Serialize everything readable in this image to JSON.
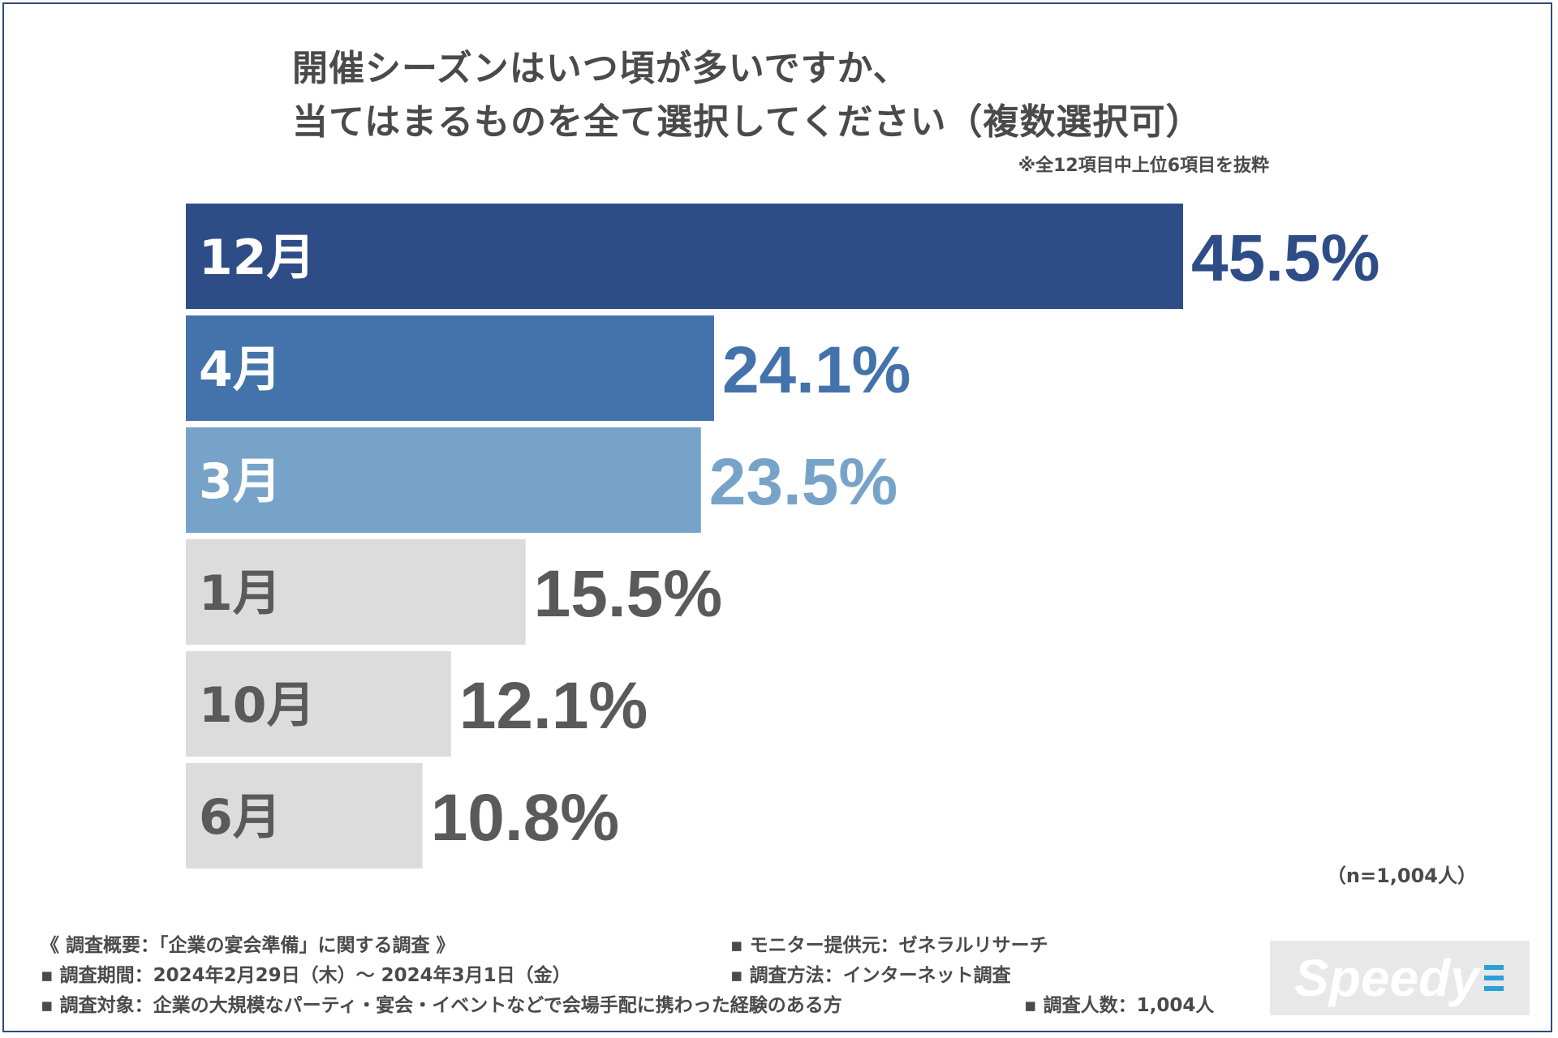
{
  "title_line1": "開催シーズンはいつ頃が多いですか、",
  "title_line2": "当てはまるものを全て選択してください（複数選択可）",
  "note": "※全12項目中上位6項目を抜粋",
  "sample": "（n=1,004人）",
  "footer": {
    "line1": "《 調査概要：「企業の宴会準備」に関する調査 》",
    "line2": "▪ 調査期間：2024年2月29日（木）～ 2024年3月1日（金）",
    "line3": "▪ 調査対象：企業の大規模なパーティ・宴会・イベントなどで会場手配に携わった経験のある方",
    "monitor": "▪ モニター提供元：ゼネラルリサーチ",
    "method": "▪ 調査方法：インターネット調査",
    "count": "▪ 調査人数：1,004人"
  },
  "logo": "Speedy",
  "colors": {
    "bar_dark": "#2e4d87",
    "bar_mid": "#4472ab",
    "bar_light": "#78a3c8",
    "bar_gray": "#dcdcdc",
    "gray_text": "#5a5a5a"
  },
  "chart_data": {
    "type": "bar",
    "orientation": "horizontal",
    "categories": [
      "12月",
      "4月",
      "3月",
      "1月",
      "10月",
      "6月"
    ],
    "values": [
      45.5,
      24.1,
      23.5,
      15.5,
      12.1,
      10.8
    ],
    "value_labels": [
      "45.5%",
      "24.1%",
      "23.5%",
      "15.5%",
      "12.1%",
      "10.8%"
    ],
    "xlim": [
      0,
      45.5
    ],
    "title": "開催シーズンはいつ頃が多いですか、当てはまるものを全て選択してください（複数選択可）"
  }
}
